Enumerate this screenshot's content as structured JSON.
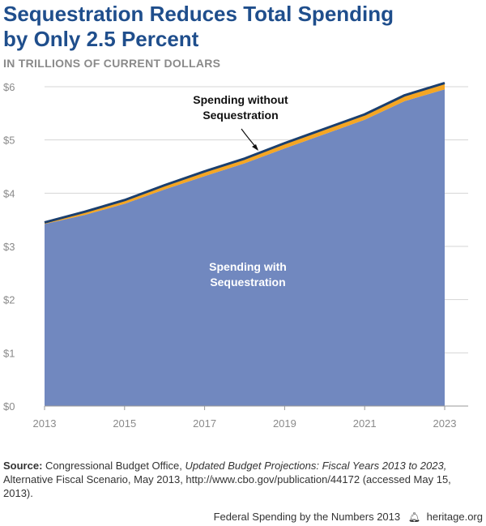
{
  "header": {
    "title_line1": "Sequestration Reduces Total Spending",
    "title_line2": "by Only 2.5 Percent",
    "subtitle": "IN TRILLIONS OF CURRENT DOLLARS"
  },
  "chart_data": {
    "type": "area",
    "x": [
      2013,
      2014,
      2015,
      2016,
      2017,
      2018,
      2019,
      2020,
      2021,
      2022,
      2023
    ],
    "series": [
      {
        "name": "Spending without Sequestration",
        "values": [
          3.45,
          3.65,
          3.87,
          4.15,
          4.41,
          4.65,
          4.94,
          5.21,
          5.48,
          5.84,
          6.07
        ]
      },
      {
        "name": "Spending with Sequestration",
        "values": [
          3.42,
          3.59,
          3.8,
          4.07,
          4.32,
          4.56,
          4.84,
          5.11,
          5.38,
          5.73,
          5.95
        ]
      }
    ],
    "xticks": [
      "2013",
      "2015",
      "2017",
      "2019",
      "2021",
      "2023"
    ],
    "yticks": [
      "$0",
      "$1",
      "$2",
      "$3",
      "$4",
      "$5",
      "$6"
    ],
    "ylim": [
      0,
      6
    ],
    "xlim": [
      2013,
      2023
    ],
    "grid": true,
    "annotations": {
      "without_line1": "Spending without",
      "without_line2": "Sequestration",
      "with_line1": "Spending with",
      "with_line2": "Sequestration"
    },
    "colors": {
      "with_fill": "#7188bf",
      "gap_fill": "#f5a623",
      "top_line": "#1b3f6e",
      "grid": "#d4d4d4"
    }
  },
  "source": {
    "label": "Source:",
    "text_before_italic": " Congressional Budget Office, ",
    "italic": "Updated Budget Projections: Fiscal Years 2013 to 2023,",
    "text_after_italic": " Alternative Fiscal Scenario, May 2013, http://www.cbo.gov/publication/44172 (accessed May 15, 2013)."
  },
  "footer": {
    "left_text": "Federal Spending by the Numbers 2013",
    "brand": "heritage.org",
    "icon": "liberty-bell-icon"
  }
}
